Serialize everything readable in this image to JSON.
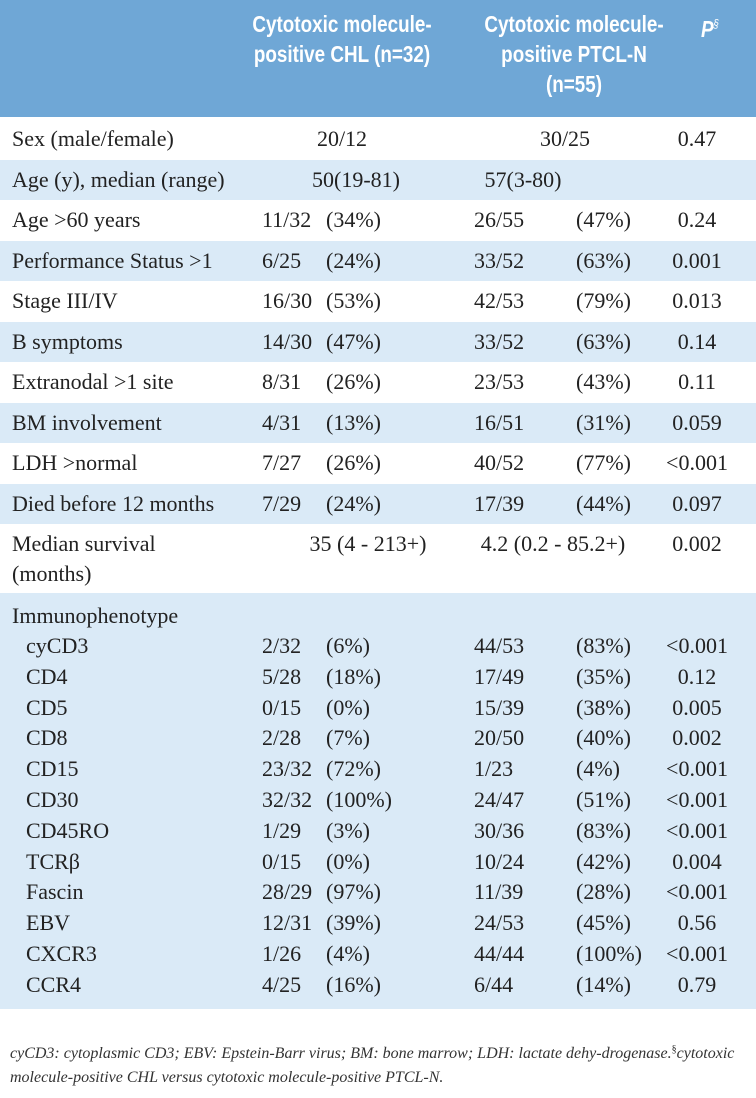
{
  "header": {
    "col1": "Cytotoxic molecule-positive CHL (n=32)",
    "col2": "Cytotoxic molecule-positive PTCL-N (n=55)",
    "p_label": "P",
    "p_sup": "§"
  },
  "rows": [
    {
      "label": "Sex (male/female)",
      "chl": "20/12",
      "ptcl": "30/25",
      "p": "0.47"
    },
    {
      "label": "Age (y), median (range)",
      "chl": "50(19-81)",
      "ptcl": "57(3-80)",
      "p": ""
    },
    {
      "label": "Age >60 years",
      "chl_n": "11/32",
      "chl_pct": "(34%)",
      "ptcl_n": "26/55",
      "ptcl_pct": "(47%)",
      "p": "0.24"
    },
    {
      "label": "Performance Status >1",
      "chl_n": "6/25",
      "chl_pct": "(24%)",
      "ptcl_n": "33/52",
      "ptcl_pct": "(63%)",
      "p": "0.001"
    },
    {
      "label": "Stage III/IV",
      "chl_n": "16/30",
      "chl_pct": "(53%)",
      "ptcl_n": "42/53",
      "ptcl_pct": "(79%)",
      "p": "0.013"
    },
    {
      "label": "B symptoms",
      "chl_n": "14/30",
      "chl_pct": "(47%)",
      "ptcl_n": "33/52",
      "ptcl_pct": "(63%)",
      "p": "0.14"
    },
    {
      "label": "Extranodal >1 site",
      "chl_n": "8/31",
      "chl_pct": "(26%)",
      "ptcl_n": "23/53",
      "ptcl_pct": "(43%)",
      "p": "0.11"
    },
    {
      "label": "BM involvement",
      "chl_n": "4/31",
      "chl_pct": "(13%)",
      "ptcl_n": "16/51",
      "ptcl_pct": "(31%)",
      "p": "0.059"
    },
    {
      "label": "LDH >normal",
      "chl_n": "7/27",
      "chl_pct": "(26%)",
      "ptcl_n": "40/52",
      "ptcl_pct": "(77%)",
      "p": "<0.001"
    },
    {
      "label": "Died before 12 months",
      "chl_n": "7/29",
      "chl_pct": "(24%)",
      "ptcl_n": "17/39",
      "ptcl_pct": "(44%)",
      "p": "0.097"
    },
    {
      "label_line1": "Median survival",
      "label_line2": "(months)",
      "chl": "35 (4 - 213+)",
      "ptcl": "4.2 (0.2 - 85.2+)",
      "p": "0.002"
    }
  ],
  "immunophenotype": {
    "title": "Immunophenotype",
    "items": [
      {
        "label": "cyCD3",
        "chl_n": "2/32",
        "chl_pct": "(6%)",
        "ptcl_n": "44/53",
        "ptcl_pct": "(83%)",
        "p": "<0.001"
      },
      {
        "label": "CD4",
        "chl_n": "5/28",
        "chl_pct": "(18%)",
        "ptcl_n": "17/49",
        "ptcl_pct": "(35%)",
        "p": "0.12"
      },
      {
        "label": "CD5",
        "chl_n": "0/15",
        "chl_pct": "(0%)",
        "ptcl_n": "15/39",
        "ptcl_pct": "(38%)",
        "p": "0.005"
      },
      {
        "label": "CD8",
        "chl_n": "2/28",
        "chl_pct": "(7%)",
        "ptcl_n": "20/50",
        "ptcl_pct": "(40%)",
        "p": "0.002"
      },
      {
        "label": "CD15",
        "chl_n": "23/32",
        "chl_pct": "(72%)",
        "ptcl_n": "1/23",
        "ptcl_pct": "(4%)",
        "p": "<0.001"
      },
      {
        "label": "CD30",
        "chl_n": "32/32",
        "chl_pct": "(100%)",
        "ptcl_n": "24/47",
        "ptcl_pct": "(51%)",
        "p": "<0.001"
      },
      {
        "label": "CD45RO",
        "chl_n": "1/29",
        "chl_pct": "(3%)",
        "ptcl_n": "30/36",
        "ptcl_pct": "(83%)",
        "p": "<0.001"
      },
      {
        "label": "TCRβ",
        "chl_n": "0/15",
        "chl_pct": "(0%)",
        "ptcl_n": "10/24",
        "ptcl_pct": "(42%)",
        "p": "0.004"
      },
      {
        "label": "Fascin",
        "chl_n": "28/29",
        "chl_pct": "(97%)",
        "ptcl_n": "11/39",
        "ptcl_pct": "(28%)",
        "p": "<0.001"
      },
      {
        "label": "EBV",
        "chl_n": "12/31",
        "chl_pct": "(39%)",
        "ptcl_n": "24/53",
        "ptcl_pct": "(45%)",
        "p": "0.56"
      },
      {
        "label": "CXCR3",
        "chl_n": "1/26",
        "chl_pct": "(4%)",
        "ptcl_n": "44/44",
        "ptcl_pct": "(100%)",
        "p": "<0.001"
      },
      {
        "label": "CCR4",
        "chl_n": "4/25",
        "chl_pct": "(16%)",
        "ptcl_n": "6/44",
        "ptcl_pct": "(14%)",
        "p": "0.79"
      }
    ]
  },
  "footnote": {
    "text_before": "cyCD3: cytoplasmic CD3; EBV: Epstein-Barr virus; BM: bone marrow; LDH: lactate dehy-drogenase.",
    "sup": "§",
    "text_after": "cytotoxic molecule-positive CHL versus cytotoxic molecule-positive PTCL-N."
  }
}
